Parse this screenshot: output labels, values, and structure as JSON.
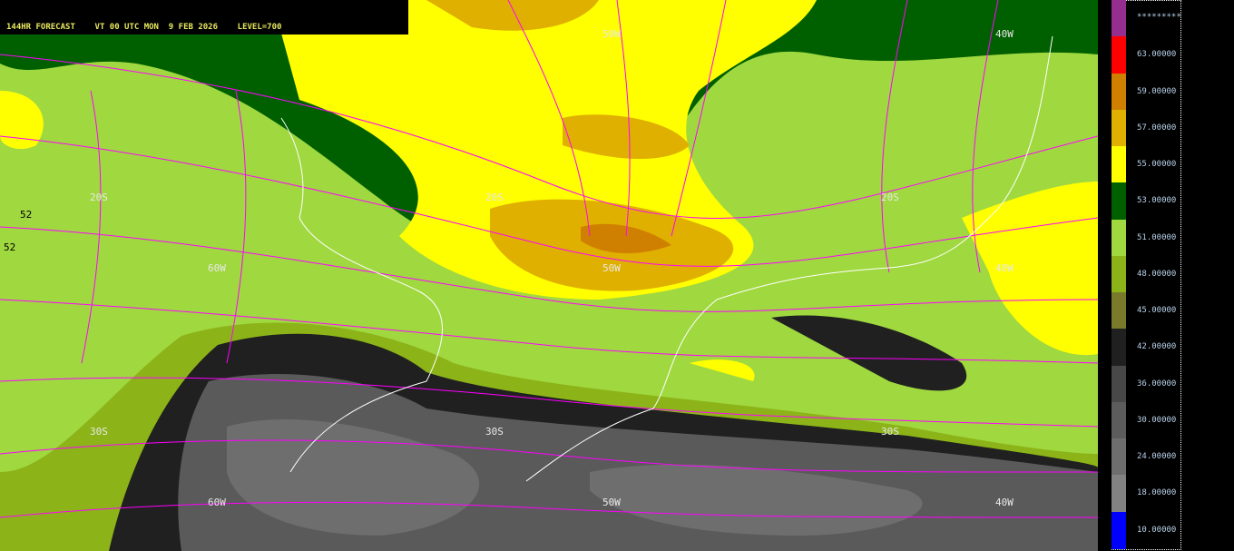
{
  "header": {
    "text": "144HR FORECAST    VT 00 UTC MON  9 FEB 2026    LEVEL=700"
  },
  "map": {
    "grid_labels": [
      {
        "t": "50W"
      },
      {
        "t": "40W"
      },
      {
        "t": "20S"
      },
      {
        "t": "20S"
      },
      {
        "t": "20S"
      },
      {
        "t": "60W"
      },
      {
        "t": "50W"
      },
      {
        "t": "40W"
      },
      {
        "t": "30S"
      },
      {
        "t": "30S"
      },
      {
        "t": "30S"
      },
      {
        "t": "60W"
      },
      {
        "t": "50W"
      },
      {
        "t": "40W"
      }
    ],
    "contour_labels": [
      "52",
      "52"
    ],
    "streamline_color": "#ff00ff",
    "coastline_color": "#ffffff"
  },
  "legend": {
    "top_label": "*********",
    "levels": [
      {
        "color": "#952e8f",
        "label": ""
      },
      {
        "color": "#ff0000",
        "label": "63.00000"
      },
      {
        "color": "#d08000",
        "label": "59.00000"
      },
      {
        "color": "#e0b000",
        "label": "57.00000"
      },
      {
        "color": "#ffff00",
        "label": "55.00000"
      },
      {
        "color": "#006000",
        "label": "53.00000"
      },
      {
        "color": "#a0d840",
        "label": "51.00000"
      },
      {
        "color": "#8cb418",
        "label": "48.00000"
      },
      {
        "color": "#7a7a2c",
        "label": "45.00000"
      },
      {
        "color": "#202020",
        "label": "42.00000"
      },
      {
        "color": "#484848",
        "label": "36.00000"
      },
      {
        "color": "#5c5c5c",
        "label": "30.00000"
      },
      {
        "color": "#6e6e6e",
        "label": "24.00000"
      },
      {
        "color": "#828282",
        "label": "18.00000"
      },
      {
        "color": "#0000ff",
        "label": "10.00000"
      }
    ]
  }
}
